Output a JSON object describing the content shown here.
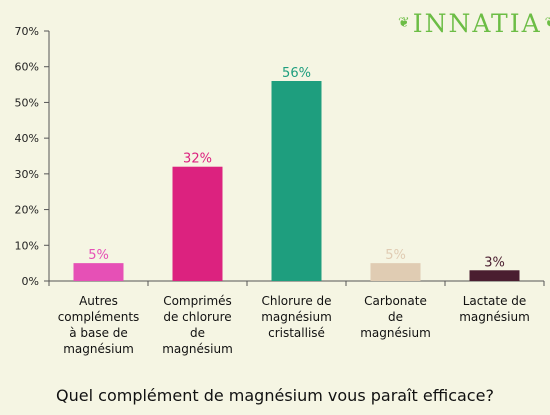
{
  "brand": {
    "logo_text": "INNATIA",
    "left_ornament": "leaf-icon",
    "right_ornament": "leaf-icon",
    "color": "#6cbd45"
  },
  "question": "Quel complément de magnésium vous paraît efficace?",
  "chart_data": {
    "type": "bar",
    "title": "",
    "xlabel": "",
    "ylabel": "",
    "ylim": [
      0,
      70
    ],
    "y_ticks": [
      "0%",
      "10%",
      "20%",
      "30%",
      "40%",
      "50%",
      "60%",
      "70%"
    ],
    "categories": [
      [
        "Autres",
        "compléments",
        "à base de",
        "magnésium"
      ],
      [
        "Comprimés",
        "de chlorure",
        "de",
        "magnésium"
      ],
      [
        "Chlorure de",
        "magnésium",
        "cristallisé"
      ],
      [
        "Carbonate",
        "de",
        "magnésium"
      ],
      [
        "Lactate de",
        "magnésium"
      ]
    ],
    "values": [
      5,
      32,
      56,
      5,
      3
    ],
    "value_labels": [
      "5%",
      "32%",
      "56%",
      "5%",
      "3%"
    ],
    "colors": [
      "#e650b6",
      "#dc227f",
      "#1e9e7e",
      "#e0ccb3",
      "#4a1e30"
    ],
    "grid": false,
    "legend": "none"
  }
}
